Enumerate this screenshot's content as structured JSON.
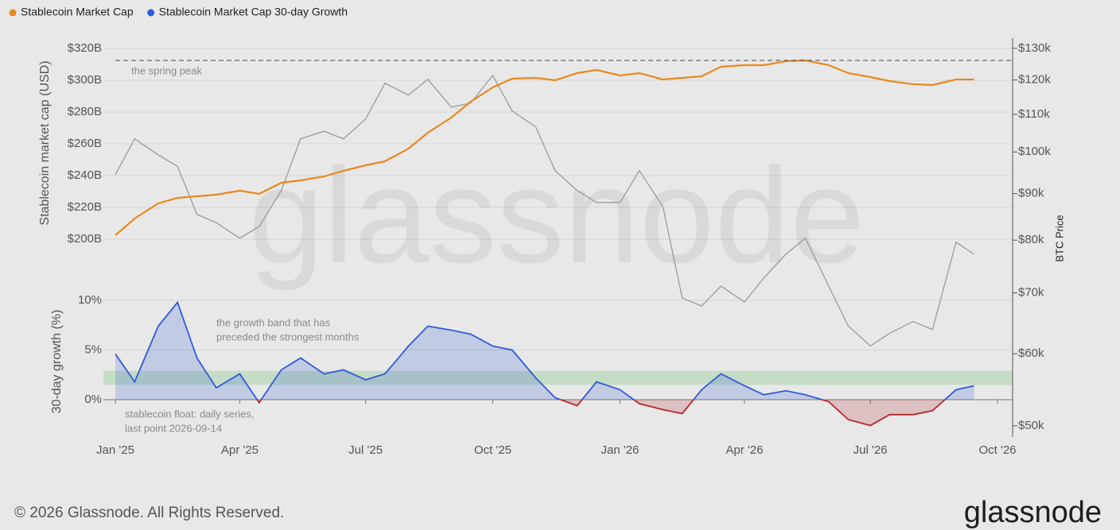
{
  "chart_data": {
    "type": "line",
    "legend": "top-left",
    "x": [
      "2025-01-01",
      "2025-01-15",
      "2025-02-01",
      "2025-02-15",
      "2025-03-01",
      "2025-03-15",
      "2025-04-01",
      "2025-04-15",
      "2025-05-01",
      "2025-05-15",
      "2025-06-01",
      "2025-06-15",
      "2025-07-01",
      "2025-07-15",
      "2025-08-01",
      "2025-08-15",
      "2025-09-01",
      "2025-09-15",
      "2025-10-01",
      "2025-10-15",
      "2025-11-01",
      "2025-11-15",
      "2025-12-01",
      "2025-12-15",
      "2026-01-01",
      "2026-01-15",
      "2026-02-01",
      "2026-02-15",
      "2026-03-01",
      "2026-03-15",
      "2026-04-01",
      "2026-04-15",
      "2026-05-01",
      "2026-05-15",
      "2026-06-01",
      "2026-06-15",
      "2026-07-01",
      "2026-07-15",
      "2026-08-01",
      "2026-08-15",
      "2026-09-01",
      "2026-09-14"
    ],
    "xlim": [
      "2025-01-01",
      "2026-10-01"
    ],
    "xticks": [
      {
        "value": "2025-01-01",
        "label": "Jan '25"
      },
      {
        "value": "2025-04-01",
        "label": "Apr '25"
      },
      {
        "value": "2025-07-01",
        "label": "Jul '25"
      },
      {
        "value": "2025-10-01",
        "label": "Oct '25"
      },
      {
        "value": "2026-01-01",
        "label": "Jan '26"
      },
      {
        "value": "2026-04-01",
        "label": "Apr '26"
      },
      {
        "value": "2026-07-01",
        "label": "Jul '26"
      },
      {
        "value": "2026-10-01",
        "label": "Oct '26"
      }
    ],
    "ylabel": "Stablecoin market cap (USD)",
    "ylim": [
      185,
      325
    ],
    "yticks": [
      {
        "value": 200,
        "label": "$200B"
      },
      {
        "value": 220,
        "label": "$220B"
      },
      {
        "value": 240,
        "label": "$240B"
      },
      {
        "value": 260,
        "label": "$260B"
      },
      {
        "value": 280,
        "label": "$280B"
      },
      {
        "value": 300,
        "label": "$300B"
      },
      {
        "value": 320,
        "label": "$320B"
      }
    ],
    "y2label": "BTC Price",
    "y2log": true,
    "y2lim": [
      48600,
      133400
    ],
    "y2ticks": [
      {
        "value": 50000,
        "label": "$50k"
      },
      {
        "value": 60000,
        "label": "$60k"
      },
      {
        "value": 70000,
        "label": "$70k"
      },
      {
        "value": 80000,
        "label": "$80k"
      },
      {
        "value": 90000,
        "label": "$90k"
      },
      {
        "value": 100000,
        "label": "$100k"
      },
      {
        "value": 110000,
        "label": "$110k"
      },
      {
        "value": 120000,
        "label": "$120k"
      },
      {
        "value": 130000,
        "label": "$130k"
      }
    ],
    "y3label": "30-day growth (%)",
    "y3lim": [
      -3.6,
      11.4
    ],
    "y3ticks": [
      {
        "value": 0,
        "label": "0%"
      },
      {
        "value": 5,
        "label": "5%"
      },
      {
        "value": 10,
        "label": "10%"
      }
    ],
    "grid": true,
    "series": [
      {
        "name": "Stablecoin Market Cap",
        "color": "#e8891c",
        "axis": "y",
        "values": [
          202.5,
          213,
          222.5,
          226,
          227,
          228,
          230.5,
          228.5,
          235.5,
          237,
          239.5,
          243,
          246.5,
          249,
          257,
          267,
          276.5,
          286.5,
          295.5,
          301,
          301.5,
          300,
          304.5,
          306.5,
          303,
          304.5,
          300.5,
          301.5,
          302.5,
          308.5,
          309.5,
          309.5,
          312,
          312.5,
          309.5,
          304.5,
          302,
          299.5,
          297.5,
          297,
          300.5,
          300.5
        ]
      },
      {
        "name": "Stablecoin Market Cap 30-day Growth",
        "color": "#2f5bd9",
        "negative_color": "#b5282d",
        "axis": "y3",
        "values": [
          4.6,
          1.8,
          7.4,
          9.8,
          4.2,
          1.2,
          2.6,
          -0.3,
          3.0,
          4.2,
          2.6,
          3.0,
          2.0,
          2.6,
          5.4,
          7.4,
          7.0,
          6.6,
          5.4,
          5.0,
          2.2,
          0.2,
          -0.6,
          1.8,
          1.0,
          -0.4,
          -1.0,
          -1.4,
          1.0,
          2.6,
          1.4,
          0.5,
          0.9,
          0.5,
          -0.2,
          -2.0,
          -2.6,
          -1.5,
          -1.5,
          -1.1,
          1.0,
          1.4
        ]
      },
      {
        "color": "#9a9a9a",
        "axis": "y2",
        "values": [
          94400,
          103400,
          99300,
          96400,
          85400,
          83600,
          80400,
          82800,
          90700,
          103400,
          105400,
          103400,
          108700,
          119000,
          115500,
          120200,
          112000,
          113200,
          121400,
          110900,
          106600,
          95400,
          90700,
          88000,
          88000,
          95400,
          87100,
          69100,
          67700,
          71200,
          68400,
          72700,
          77200,
          80400,
          71200,
          64400,
          61200,
          63200,
          65100,
          63800,
          79600,
          77200
        ]
      }
    ],
    "peak_line": 312.5,
    "band": [
      1.5,
      2.9
    ],
    "annotations": {
      "peak": "the spring peak",
      "band": [
        "the growth band that has",
        "preceded the strongest months"
      ],
      "note": [
        "stablecoin float: daily series,",
        "last point 2026-09-14"
      ]
    },
    "watermark": "glassnode",
    "footer": "© 2026 Glassnode. All Rights Reserved.",
    "logo": "glassnode"
  }
}
